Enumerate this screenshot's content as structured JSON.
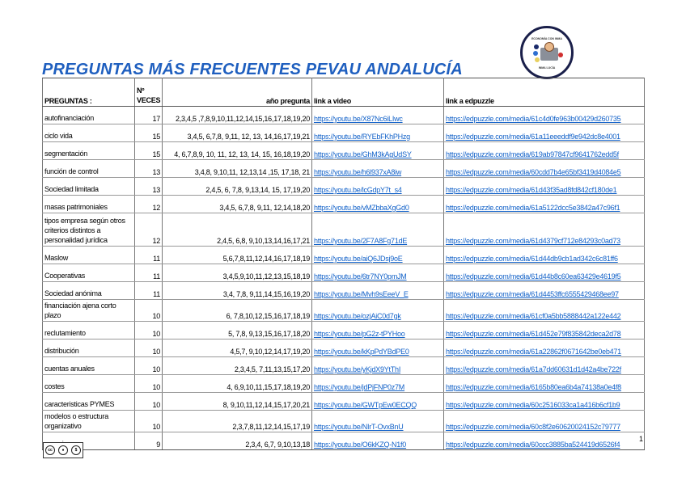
{
  "logo": {
    "top_text": "ECONOMÍA CON INMA",
    "bottom_text": "INMA LUCÍA"
  },
  "title": "PREGUNTAS MÁS FRECUENTES PEVAU ANDALUCÍA",
  "table": {
    "headers": {
      "preguntas": "PREGUNTAS :",
      "veces_1": "Nº",
      "veces_2": "VECES",
      "anio": "año pregunta",
      "video": "link a video",
      "edpuzzle": "link a edpuzzle"
    },
    "rows": [
      {
        "pregunta": "autofinanciación",
        "veces": "17",
        "anios": "2,3,4,5 ,7,8,9,10,11,12,14,15,16,17,18,19,20",
        "video": "https://youtu.be/X87Nc6iLIwc",
        "edpuzzle": "https://edpuzzle.com/media/61c4d0fe963b00429d260735"
      },
      {
        "pregunta": "ciclo vida",
        "veces": "15",
        "anios": "3,4,5, 6,7,8, 9,11, 12, 13, 14,16,17,19,21",
        "video": "https://youtu.be/RYEbFKhPHzg",
        "edpuzzle": "https://edpuzzle.com/media/61a11eeeddf9e942dc8e4001"
      },
      {
        "pregunta": "segmentación",
        "veces": "15",
        "anios": "4, 6,7,8,9, 10, 11, 12, 13, 14, 15, 16,18,19,20",
        "video": "https://youtu.be/GhM3kAgUdSY",
        "edpuzzle": "https://edpuzzle.com/media/619ab97847cf9641762edd5f"
      },
      {
        "pregunta": "función de control",
        "veces": "13",
        "anios": "3,4,8, 9,10,11, 12,13,14 ,15, 17,18, 21",
        "video": "https://youtu.be/h6l937xA8iw",
        "edpuzzle": "https://edpuzzle.com/media/60cdd7b4e65bf3419d4084e5"
      },
      {
        "pregunta": "Sociedad limitada",
        "veces": "13",
        "anios": "2,4,5, 6, 7,8, 9,13,14, 15, 17,19,20",
        "video": "https://youtu.be/lcGdpY7t_s4",
        "edpuzzle": "https://edpuzzle.com/media/61d43f35ad8fd842cf180de1"
      },
      {
        "pregunta": "masas patrimoniales",
        "veces": "12",
        "anios": "3,4,5, 6,7,8, 9,11, 12,14,18,20",
        "video": "https://youtu.be/vMZbbaXgGd0",
        "edpuzzle": "https://edpuzzle.com/media/61a5122dcc5e3842a47c96f1"
      },
      {
        "pregunta": "tipos empresa según otros criterios distintos a personalidad jurídica",
        "veces": "12",
        "anios": "2,4,5, 6,8, 9,10,13,14,16,17,21",
        "video": "https://youtu.be/2F7A8Fg71dE",
        "edpuzzle": "https://edpuzzle.com/media/61d4379cf712e84293c0ad73"
      },
      {
        "pregunta": "Maslow",
        "veces": "11",
        "anios": "5,6,7,8,11,12,14,16,17,18,19",
        "video": "https://youtu.be/aiQ6JDsj9oE",
        "edpuzzle": "https://edpuzzle.com/media/61d44db9cb1ad342c6c81ff6"
      },
      {
        "pregunta": "Cooperativas",
        "veces": "11",
        "anios": "3,4,5,9,10,11,12,13,15,18,19",
        "video": "https://youtu.be/6tr7NY0pmJM",
        "edpuzzle": "https://edpuzzle.com/media/61d44b8c60ea63429e4619f5"
      },
      {
        "pregunta": "Sociedad anónima",
        "veces": "11",
        "anios": "3,4, 7,8, 9,11,14,15,16,19,20",
        "video": "https://youtu.be/Mvh9sEeeV_E",
        "edpuzzle": "https://edpuzzle.com/media/61d4453ffc6555429468ee97"
      },
      {
        "pregunta": "financiación ajena corto plazo",
        "veces": "10",
        "anios": "6, 7,8,10,12,15,16,17,18,19",
        "video": "https://youtu.be/ozjAiC0d7gk",
        "edpuzzle": "https://edpuzzle.com/media/61cf0a5bb5888442a122e442"
      },
      {
        "pregunta": "reclutamiento",
        "veces": "10",
        "anios": "5, 7,8, 9,13,15,16,17,18,20",
        "video": "https://youtu.be/pG2z-tPYHoo",
        "edpuzzle": "https://edpuzzle.com/media/61d452e79f835842deca2d78"
      },
      {
        "pregunta": "distribución",
        "veces": "10",
        "anios": "4,5,7, 9,10,12,14,17,19,20",
        "video": "https://youtu.be/kKpPdYBdPE0",
        "edpuzzle": "https://edpuzzle.com/media/61a22862f0671642be0eb471"
      },
      {
        "pregunta": "cuentas anuales",
        "veces": "10",
        "anios": "2,3,4,5, 7,11,13,15,17,20",
        "video": "https://youtu.be/yKjdX9YtThI",
        "edpuzzle": "https://edpuzzle.com/media/61a7dd60631d1d42a4be722f"
      },
      {
        "pregunta": "costes",
        "veces": "10",
        "anios": "4, 6,9,10,11,15,17,18,19,20",
        "video": "https://youtu.be/jdPjFNP0z7M",
        "edpuzzle": "https://edpuzzle.com/media/6165b80ea6b4a74138a0e4f8"
      },
      {
        "pregunta": "caracteristicas PYMES",
        "veces": "10",
        "anios": "8, 9,10,11,12,14,15,17,20,21",
        "video": "https://youtu.be/GWTpEw0ECQQ",
        "edpuzzle": "https://edpuzzle.com/media/60c2516033ca1a416b6cf1b9"
      },
      {
        "pregunta": "modelos o estructura organizativo",
        "veces": "10",
        "anios": "2,3,7,8,11,12,14,15,17,19",
        "video": "https://youtu.be/NIrT-OvxBnU",
        "edpuzzle": "https://edpuzzle.com/media/60c8f2e60620024152c79777"
      },
      {
        "pregunta": "organigrama",
        "veces": "9",
        "anios": "2,3,4, 6,7, 9,10,13,18",
        "video": "https://youtu.be/O6kKZQ-N1f0",
        "edpuzzle": "https://edpuzzle.com/media/60ccc3885ba524419d6526f4"
      }
    ]
  },
  "page_number": "1",
  "license": {
    "icons": [
      "cc-icon",
      "by-attribution-icon",
      "non-commercial-icon"
    ],
    "cc_text": "cc"
  },
  "colors": {
    "title": "#1f5fbf",
    "link": "#1060c8"
  }
}
